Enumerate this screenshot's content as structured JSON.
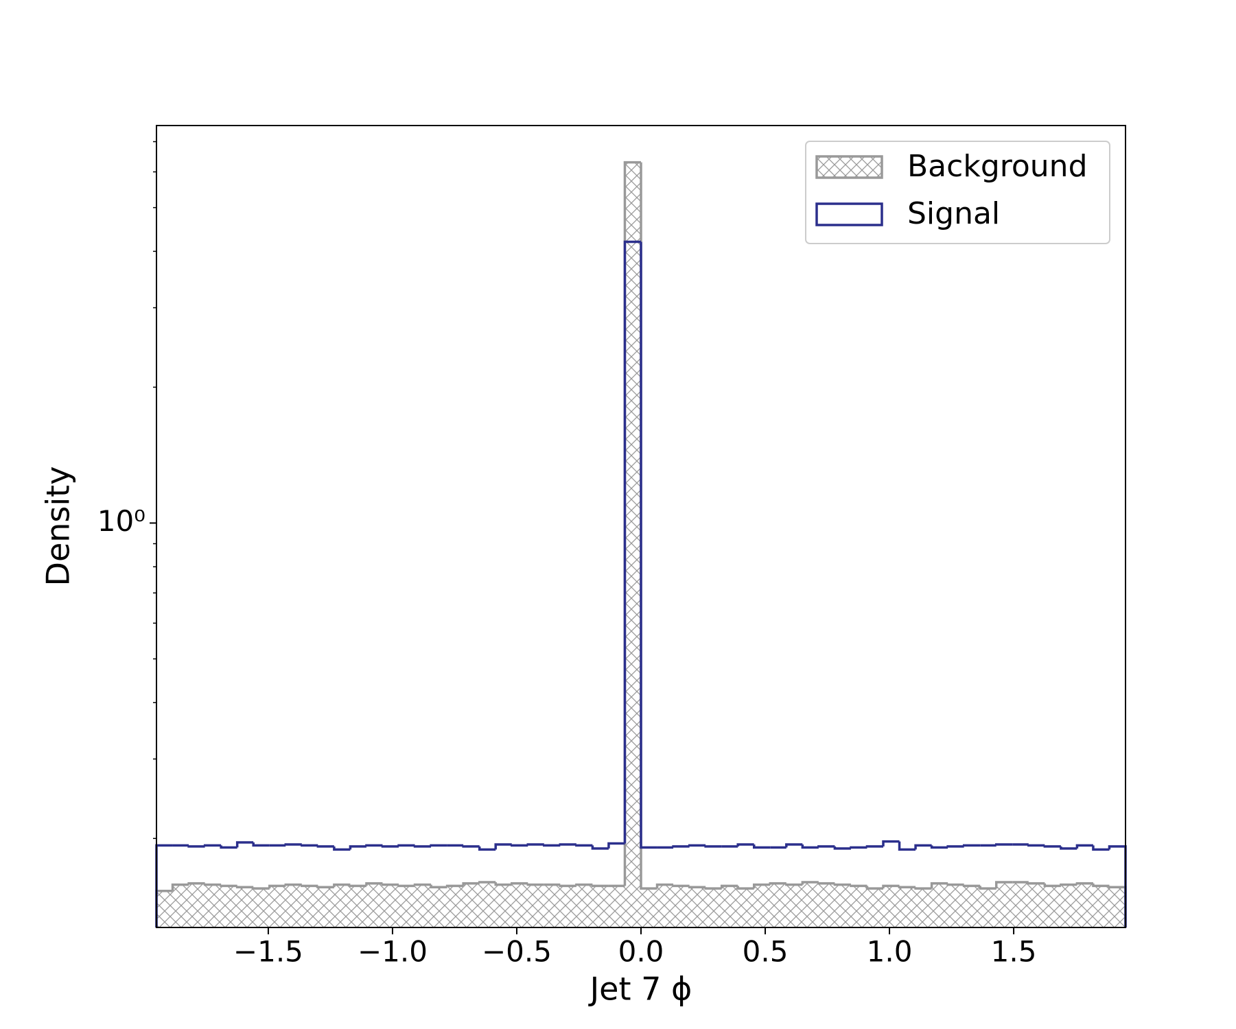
{
  "chart_data": {
    "type": "histogram",
    "xlabel": "Jet 7 ϕ",
    "ylabel": "Density",
    "bins": [
      -1.95,
      -1.885,
      -1.82,
      -1.755,
      -1.69,
      -1.625,
      -1.56,
      -1.495,
      -1.43,
      -1.365,
      -1.3,
      -1.235,
      -1.17,
      -1.105,
      -1.04,
      -0.975,
      -0.91,
      -0.845,
      -0.78,
      -0.715,
      -0.65,
      -0.585,
      -0.52,
      -0.455,
      -0.39,
      -0.325,
      -0.26,
      -0.195,
      -0.13,
      -0.065,
      0,
      0.065,
      0.13,
      0.195,
      0.26,
      0.325,
      0.39,
      0.455,
      0.52,
      0.585,
      0.65,
      0.715,
      0.78,
      0.845,
      0.91,
      0.975,
      1.04,
      1.105,
      1.17,
      1.235,
      1.3,
      1.365,
      1.43,
      1.495,
      1.56,
      1.625,
      1.69,
      1.755,
      1.82,
      1.885,
      1.95
    ],
    "series": [
      {
        "name": "Background",
        "color": "#999999",
        "hatch": true,
        "values": [
          0.153,
          0.158,
          0.159,
          0.158,
          0.157,
          0.156,
          0.155,
          0.157,
          0.158,
          0.157,
          0.156,
          0.158,
          0.157,
          0.159,
          0.158,
          0.157,
          0.158,
          0.156,
          0.157,
          0.159,
          0.16,
          0.158,
          0.159,
          0.158,
          0.158,
          0.157,
          0.158,
          0.157,
          0.157,
          6.3,
          0.155,
          0.158,
          0.157,
          0.156,
          0.155,
          0.157,
          0.155,
          0.158,
          0.159,
          0.158,
          0.16,
          0.159,
          0.158,
          0.157,
          0.155,
          0.157,
          0.156,
          0.155,
          0.159,
          0.158,
          0.157,
          0.155,
          0.16,
          0.16,
          0.159,
          0.157,
          0.158,
          0.159,
          0.157,
          0.156
        ]
      },
      {
        "name": "Signal",
        "color": "#2b2f8c",
        "hatch": false,
        "values": [
          0.193,
          0.193,
          0.192,
          0.193,
          0.191,
          0.196,
          0.193,
          0.193,
          0.194,
          0.193,
          0.192,
          0.189,
          0.192,
          0.193,
          0.192,
          0.193,
          0.192,
          0.193,
          0.193,
          0.192,
          0.189,
          0.194,
          0.193,
          0.194,
          0.193,
          0.194,
          0.193,
          0.19,
          0.195,
          4.2,
          0.191,
          0.191,
          0.192,
          0.193,
          0.192,
          0.192,
          0.194,
          0.191,
          0.191,
          0.194,
          0.191,
          0.192,
          0.19,
          0.191,
          0.192,
          0.197,
          0.189,
          0.193,
          0.191,
          0.192,
          0.193,
          0.193,
          0.194,
          0.194,
          0.193,
          0.192,
          0.19,
          0.193,
          0.189,
          0.192
        ]
      }
    ],
    "xlim": [
      -1.95,
      1.95
    ],
    "xticks": [
      {
        "value": -1.5,
        "label": "−1.5"
      },
      {
        "value": -1,
        "label": "−1.0"
      },
      {
        "value": -0.5,
        "label": "−0.5"
      },
      {
        "value": 0,
        "label": "0.0"
      },
      0.5,
      {
        "value": 1,
        "label": "1.0"
      },
      1.5
    ],
    "ylim": [
      0.127,
      7.6
    ],
    "ylog": true,
    "yticks": [
      {
        "value": 1,
        "label": "10⁰"
      }
    ],
    "yminorticks": [
      0.2,
      0.3,
      0.4,
      0.5,
      0.6,
      0.7,
      0.8,
      0.9,
      2,
      3,
      4,
      5,
      6,
      7
    ],
    "legend": "upper right"
  }
}
